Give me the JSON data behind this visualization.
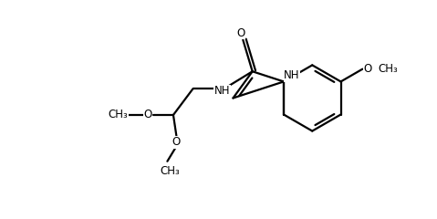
{
  "bg_color": "#ffffff",
  "line_color": "#000000",
  "line_width": 1.6,
  "font_size": 8.5,
  "fig_width": 4.79,
  "fig_height": 2.4,
  "xlim": [
    0,
    9.5
  ],
  "ylim": [
    0,
    4.5
  ]
}
